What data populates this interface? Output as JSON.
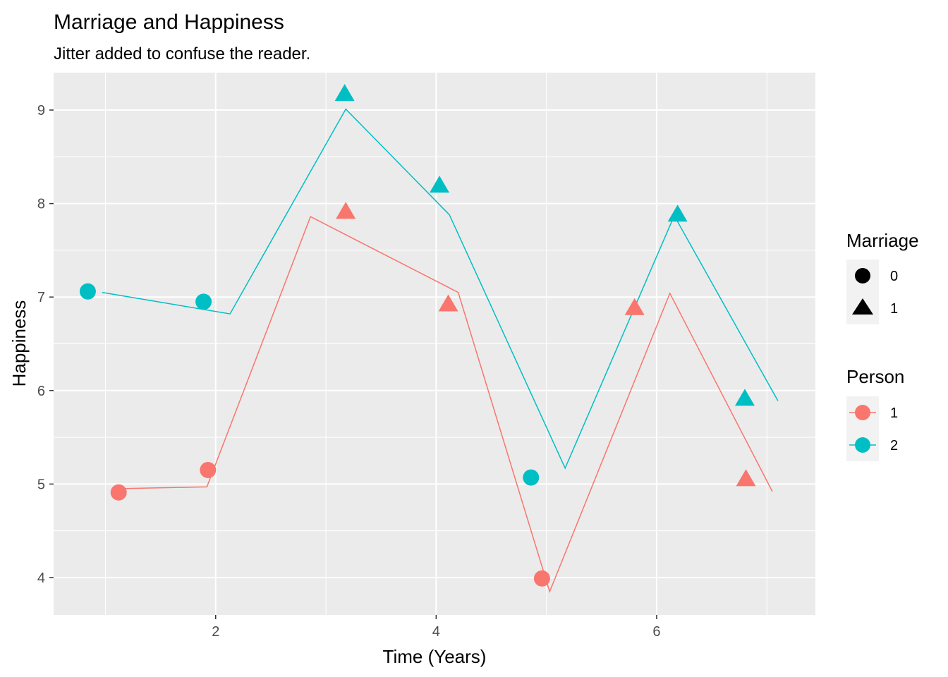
{
  "chart_data": {
    "type": "scatter",
    "title": "Marriage and Happiness",
    "subtitle": "Jitter added to confuse the reader.",
    "xlabel": "Time (Years)",
    "ylabel": "Happiness",
    "xlim": [
      0.53,
      7.44
    ],
    "ylim": [
      3.6,
      9.4
    ],
    "x_ticks": [
      2,
      4,
      6
    ],
    "y_ticks": [
      4,
      5,
      6,
      7,
      8,
      9
    ],
    "grid": true,
    "colors": {
      "1": "#F8766D",
      "2": "#00BFC4"
    },
    "legend_marriage": {
      "title": "Marriage",
      "items": [
        {
          "label": "0",
          "shape": "circle"
        },
        {
          "label": "1",
          "shape": "triangle"
        }
      ]
    },
    "legend_person": {
      "title": "Person",
      "items": [
        {
          "label": "1",
          "color": "#F8766D"
        },
        {
          "label": "2",
          "color": "#00BFC4"
        }
      ]
    },
    "series": [
      {
        "person": "1",
        "color": "#F8766D",
        "line": [
          [
            1.1,
            4.95
          ],
          [
            1.92,
            4.97
          ],
          [
            2.86,
            7.86
          ],
          [
            4.2,
            7.05
          ],
          [
            5.03,
            3.85
          ],
          [
            6.12,
            7.04
          ],
          [
            7.05,
            4.92
          ]
        ],
        "points": [
          {
            "x": 1.12,
            "y": 4.91,
            "marriage": "0"
          },
          {
            "x": 1.93,
            "y": 5.15,
            "marriage": "0"
          },
          {
            "x": 3.18,
            "y": 7.92,
            "marriage": "1"
          },
          {
            "x": 4.11,
            "y": 6.93,
            "marriage": "1"
          },
          {
            "x": 4.96,
            "y": 3.99,
            "marriage": "0"
          },
          {
            "x": 5.8,
            "y": 6.89,
            "marriage": "1"
          },
          {
            "x": 6.81,
            "y": 5.06,
            "marriage": "1"
          }
        ]
      },
      {
        "person": "2",
        "color": "#00BFC4",
        "line": [
          [
            0.97,
            7.05
          ],
          [
            2.13,
            6.82
          ],
          [
            3.18,
            9.01
          ],
          [
            4.12,
            7.88
          ],
          [
            5.17,
            5.17
          ],
          [
            6.16,
            7.87
          ],
          [
            7.1,
            5.89
          ]
        ],
        "points": [
          {
            "x": 0.84,
            "y": 7.06,
            "marriage": "0"
          },
          {
            "x": 1.89,
            "y": 6.95,
            "marriage": "0"
          },
          {
            "x": 3.17,
            "y": 9.18,
            "marriage": "1"
          },
          {
            "x": 4.03,
            "y": 8.2,
            "marriage": "1"
          },
          {
            "x": 4.86,
            "y": 5.07,
            "marriage": "0"
          },
          {
            "x": 6.19,
            "y": 7.89,
            "marriage": "1"
          },
          {
            "x": 6.8,
            "y": 5.92,
            "marriage": "1"
          }
        ]
      }
    ]
  }
}
